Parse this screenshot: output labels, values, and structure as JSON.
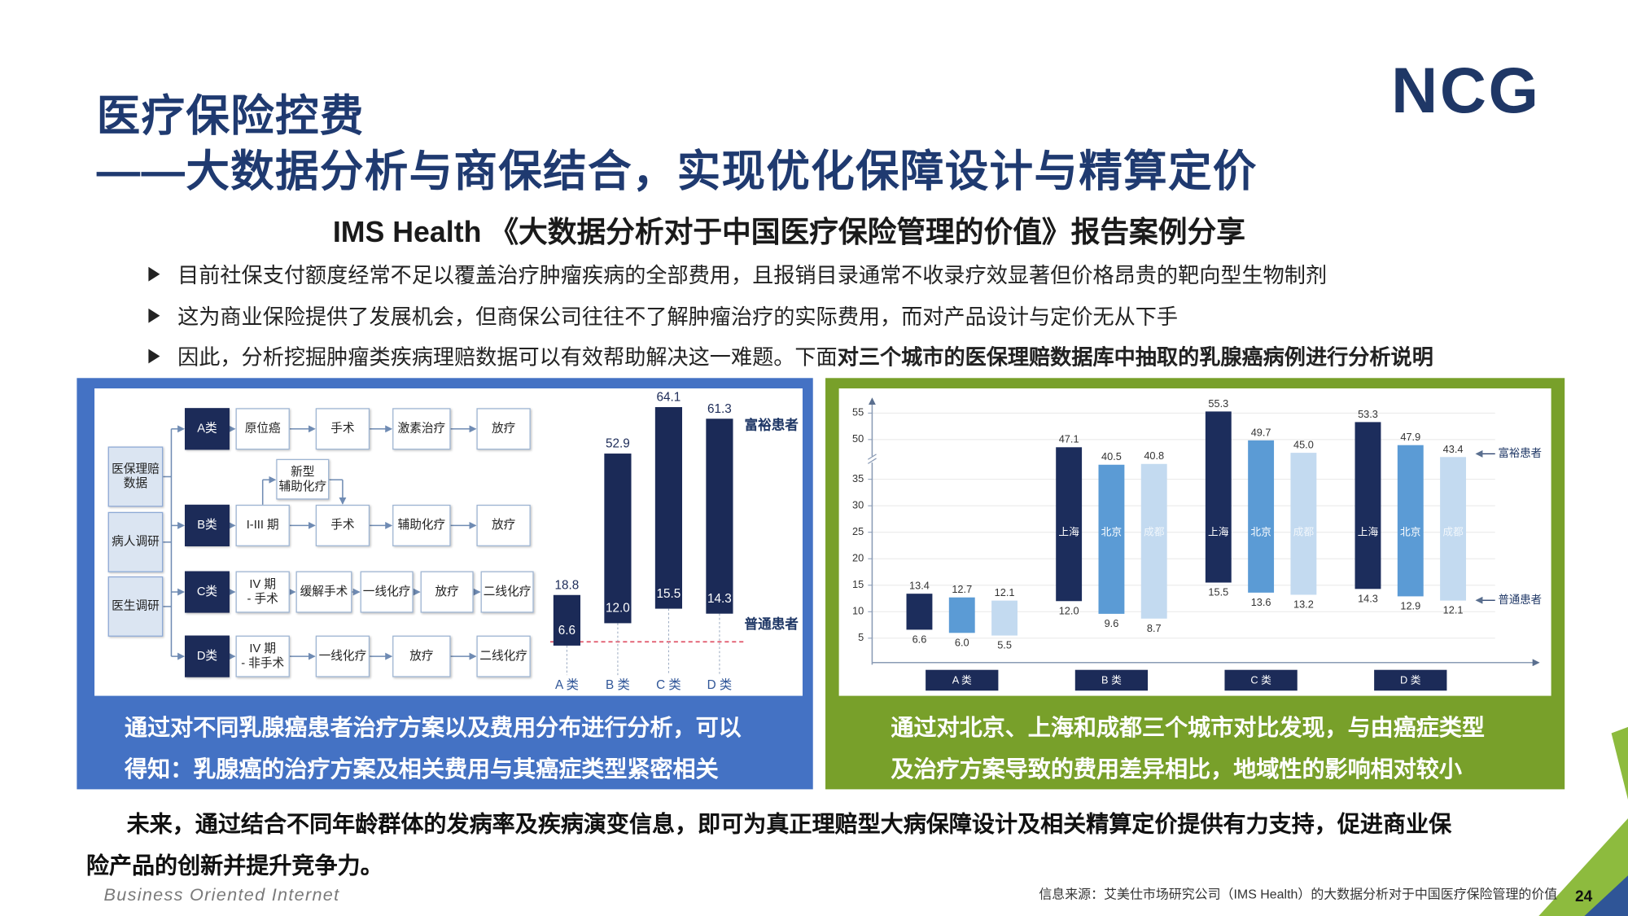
{
  "header": {
    "title": "医疗保险控费",
    "subtitle": "——大数据分析与商保结合，实现优化保障设计与精算定价",
    "logo": "NCG"
  },
  "report_title": "IMS Health 《大数据分析对于中国医疗保险管理的价值》报告案例分享",
  "bullets": [
    {
      "text": "目前社保支付额度经常不足以覆盖治疗肿瘤疾病的全部费用，且报销目录通常不收录疗效显著但价格昂贵的靶向型生物制剂"
    },
    {
      "text": "这为商业保险提供了发展机会，但商保公司往往不了解肿瘤治疗的实际费用，而对产品设计与定价无从下手"
    },
    {
      "text": "因此，分析挖掘肿瘤类疾病理赔数据可以有效帮助解决这一难题。下面",
      "emphasis": "对三个城市的医保理赔数据库中抽取的乳腺癌病例进行分析说明"
    }
  ],
  "flow": {
    "sources": [
      "医保理赔\n数据",
      "病人调研",
      "医生调研"
    ],
    "rows": [
      {
        "label": "A类",
        "steps": [
          "原位癌",
          "手术",
          "激素治疗",
          "放疗"
        ]
      },
      {
        "label": "B类",
        "steps": [
          "I-III 期",
          "手术",
          "辅助化疗",
          "放疗"
        ]
      },
      {
        "label": "C类",
        "steps": [
          "IV 期\n- 手术",
          "缓解手术",
          "一线化疗",
          "放疗",
          "二线化疗"
        ]
      },
      {
        "label": "D类",
        "steps": [
          "IV 期\n- 非手术",
          "一线化疗",
          "放疗",
          "二线化疗"
        ]
      }
    ],
    "extra": "新型\n辅助化疗"
  },
  "chart_data": [
    {
      "type": "floating-bar",
      "categories": [
        "A 类",
        "B 类",
        "C 类",
        "D 类"
      ],
      "low": [
        6.6,
        12.0,
        15.5,
        14.3
      ],
      "low_value_labels": [
        "6.6",
        "12.0",
        "15.5",
        "14.3"
      ],
      "high": [
        18.8,
        52.9,
        64.1,
        61.3
      ],
      "color": "#1b2a57",
      "annotations": [
        "富裕患者",
        "普通患者"
      ]
    },
    {
      "type": "grouped-floating-bar",
      "categories": [
        "A 类",
        "B 类",
        "C 类",
        "D 类"
      ],
      "series": [
        {
          "name": "上海",
          "color": "#1c2d5c",
          "low": [
            6.6,
            12.0,
            15.5,
            14.3
          ],
          "low_value_labels": [
            "6.6",
            "12.0",
            "15.5",
            "14.3"
          ],
          "high": [
            13.4,
            47.1,
            55.3,
            53.3
          ]
        },
        {
          "name": "北京",
          "color": "#5b9bd5",
          "low": [
            6.0,
            9.6,
            13.6,
            12.9
          ],
          "low_value_labels": [
            "6.0",
            "9.6",
            "13.6",
            "12.9"
          ],
          "high": [
            12.7,
            40.5,
            49.7,
            47.9
          ]
        },
        {
          "name": "成都",
          "color": "#c3daf0",
          "low": [
            5.5,
            8.7,
            13.2,
            12.1
          ],
          "high": [
            12.1,
            40.8,
            45.0,
            43.4
          ],
          "high_value_labels": [
            "12.1",
            "40.8",
            "45.0",
            "43.4"
          ]
        }
      ],
      "ylim": [
        0,
        55
      ],
      "yticks": [
        5,
        10,
        15,
        20,
        25,
        30,
        35,
        50,
        55
      ],
      "grid": true,
      "annotations": [
        "富裕患者",
        "普通患者"
      ]
    }
  ],
  "captions": {
    "left": [
      "通过对不同乳腺癌患者治疗方案以及费用分布进行分析，可以",
      "得知：乳腺癌的治疗方案及相关费用与其癌症类型紧密相关"
    ],
    "right": [
      "通过对北京、上海和成都三个城市对比发现，与由癌症类型",
      "及治疗方案导致的费用差异相比，地域性的影响相对较小"
    ]
  },
  "conclusion": [
    "未来，通过结合不同年龄群体的发病率及疾病演变信息，即可为真正理赔型大病保障设计及相关精算定价提供有力支持，促进商业保",
    "险产品的创新并提升竞争力。"
  ],
  "footer": {
    "tagline": "Business Oriented Internet",
    "source": "信息来源：艾美仕市场研究公司（IMS Health）的大数据分析对于中国医疗保险管理的价值",
    "page": 24
  }
}
